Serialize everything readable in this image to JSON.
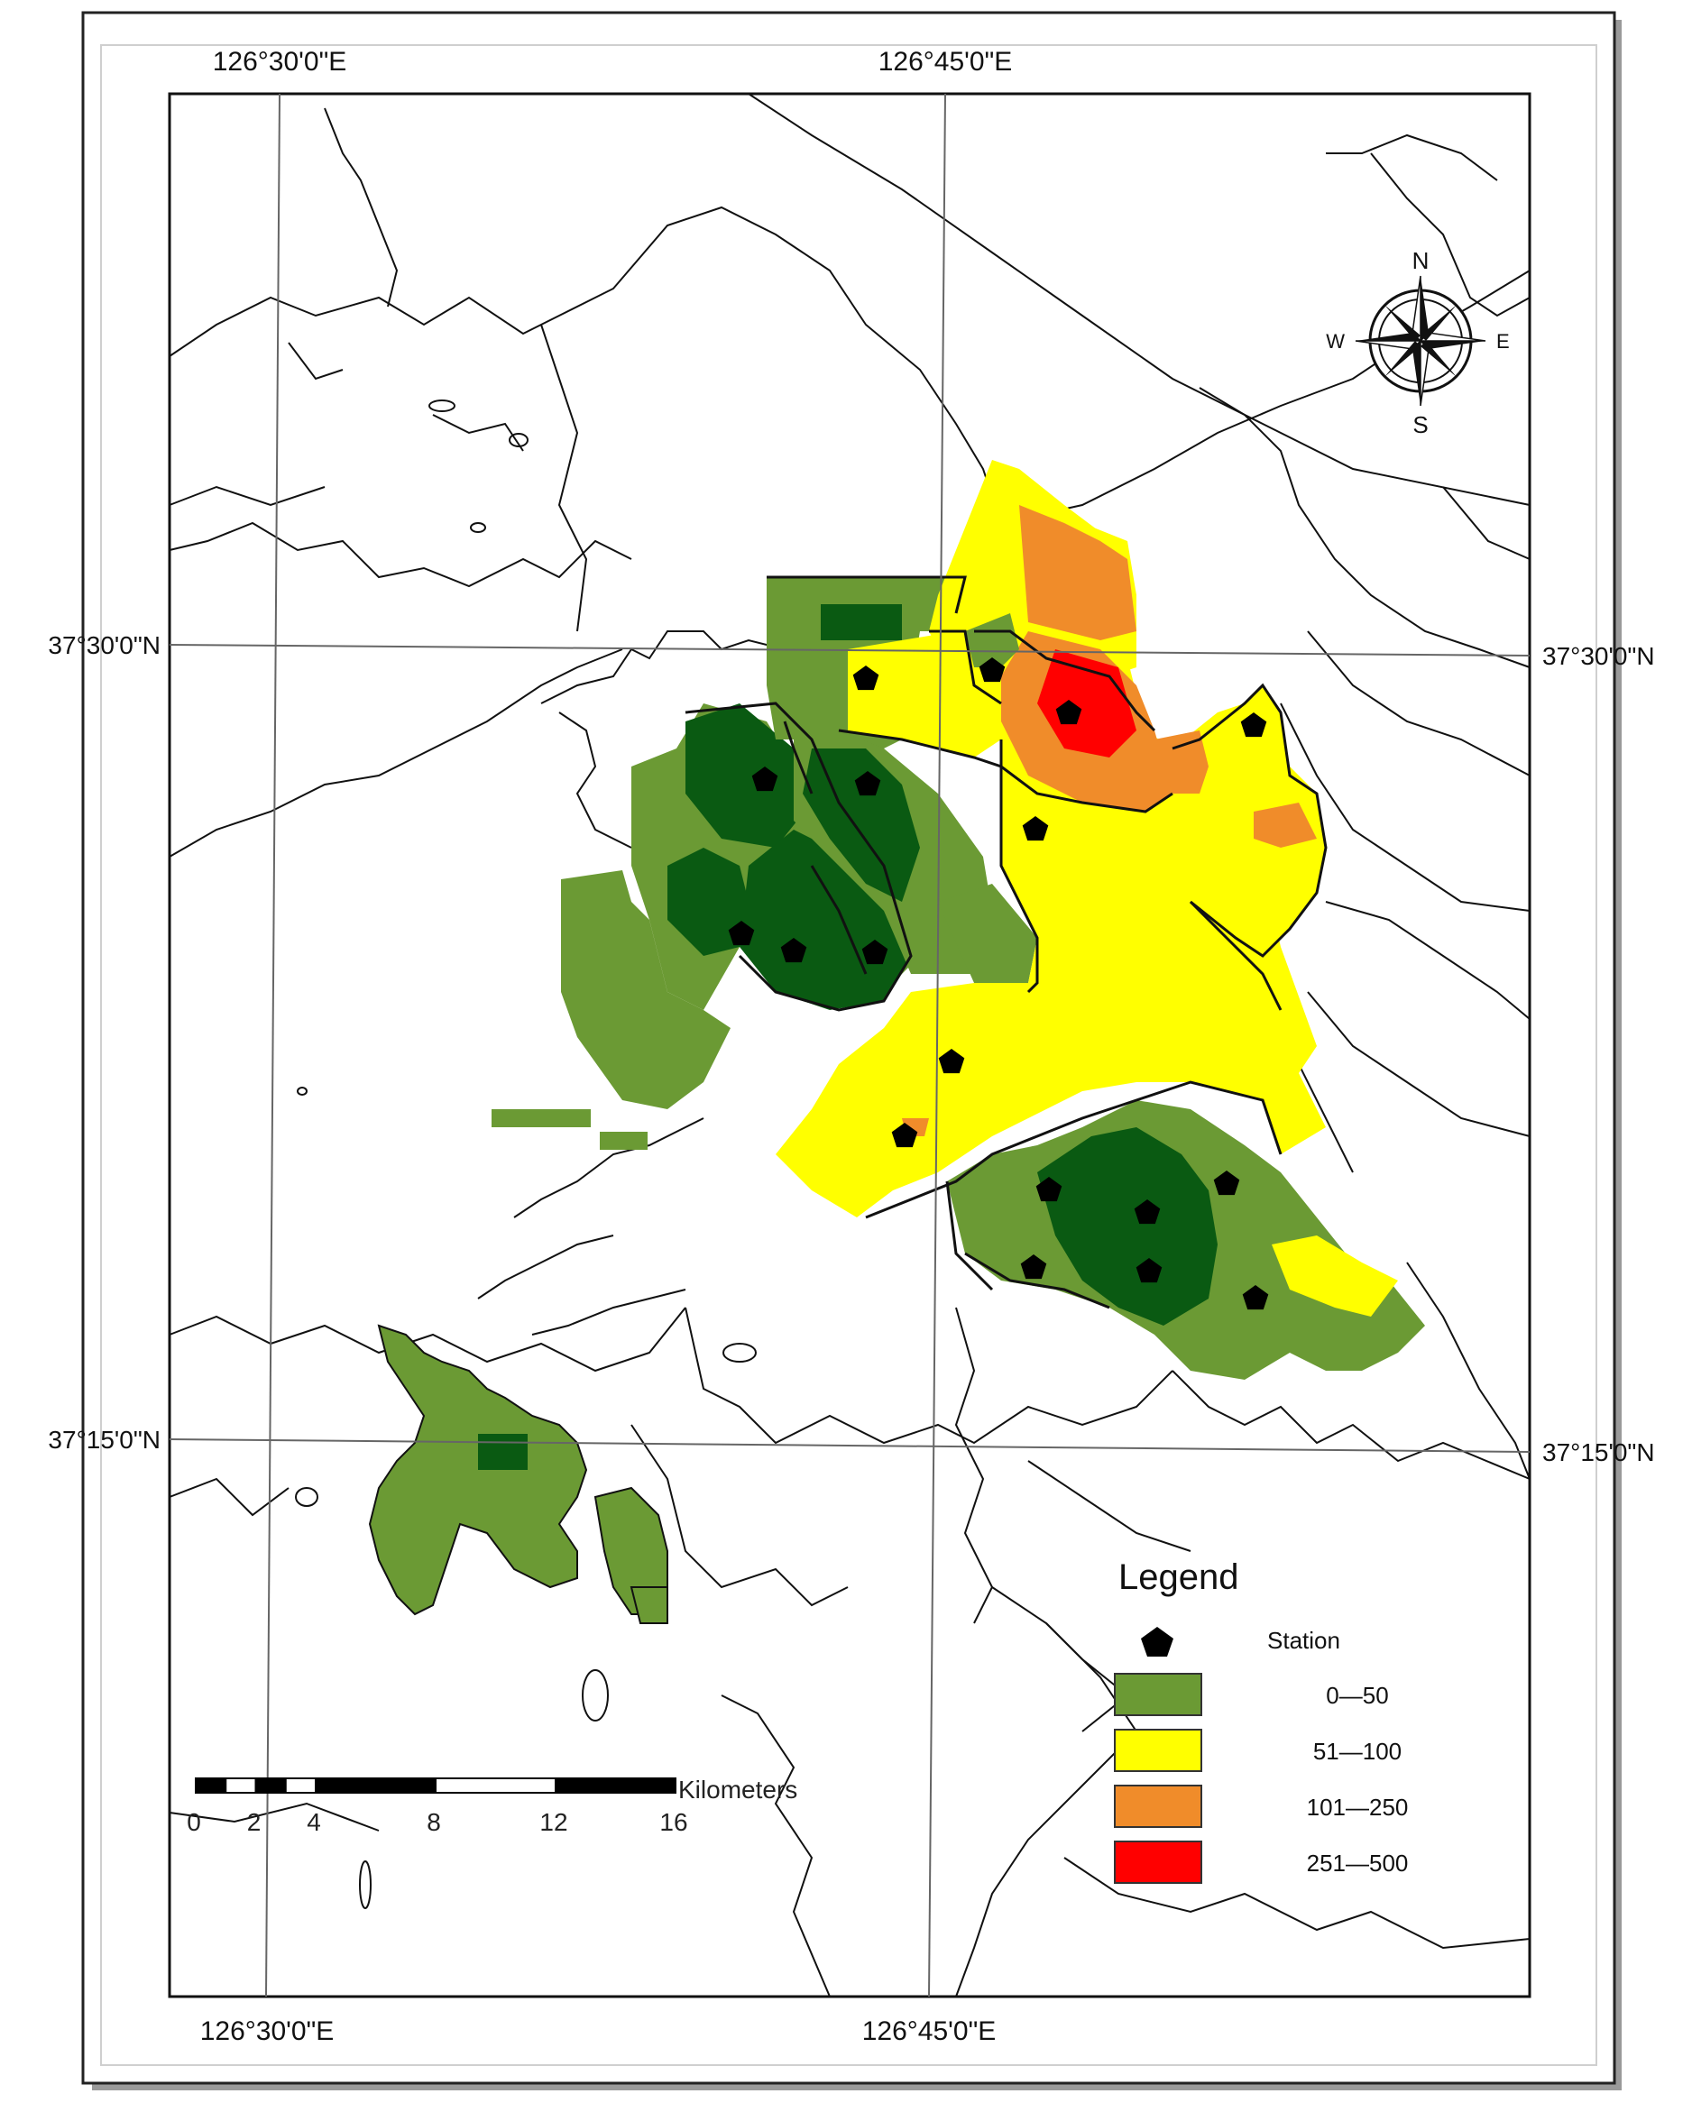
{
  "graticule": {
    "top": [
      "126°30'0\"E",
      "126°45'0\"E"
    ],
    "bottom": [
      "126°30'0\"E",
      "126°45'0\"E"
    ],
    "left": [
      "37°30'0\"N",
      "37°15'0\"N"
    ],
    "right": [
      "37°30'0\"N",
      "37°15'0\"N"
    ]
  },
  "north_arrow": {
    "icon": "compass-rose-icon",
    "n": "N",
    "s": "S",
    "e": "E",
    "w": "W"
  },
  "legend": {
    "title": "Legend",
    "station": {
      "icon": "pentagon-icon",
      "label": "Station"
    },
    "classes": [
      {
        "label": "0—50",
        "color": "#6b9a34"
      },
      {
        "label": "51—100",
        "color": "#ffff00"
      },
      {
        "label": "101—250",
        "color": "#f08c2a"
      },
      {
        "label": "251—500",
        "color": "#ff0000"
      }
    ]
  },
  "scale_bar": {
    "unit": "Kilometers",
    "ticks": [
      "0",
      "2",
      "4",
      "8",
      "12",
      "16"
    ]
  },
  "colors": {
    "dark_green": "#0a5a12",
    "green": "#6b9a34",
    "yellow": "#ffff00",
    "orange": "#f08c2a",
    "red": "#ff0000"
  }
}
